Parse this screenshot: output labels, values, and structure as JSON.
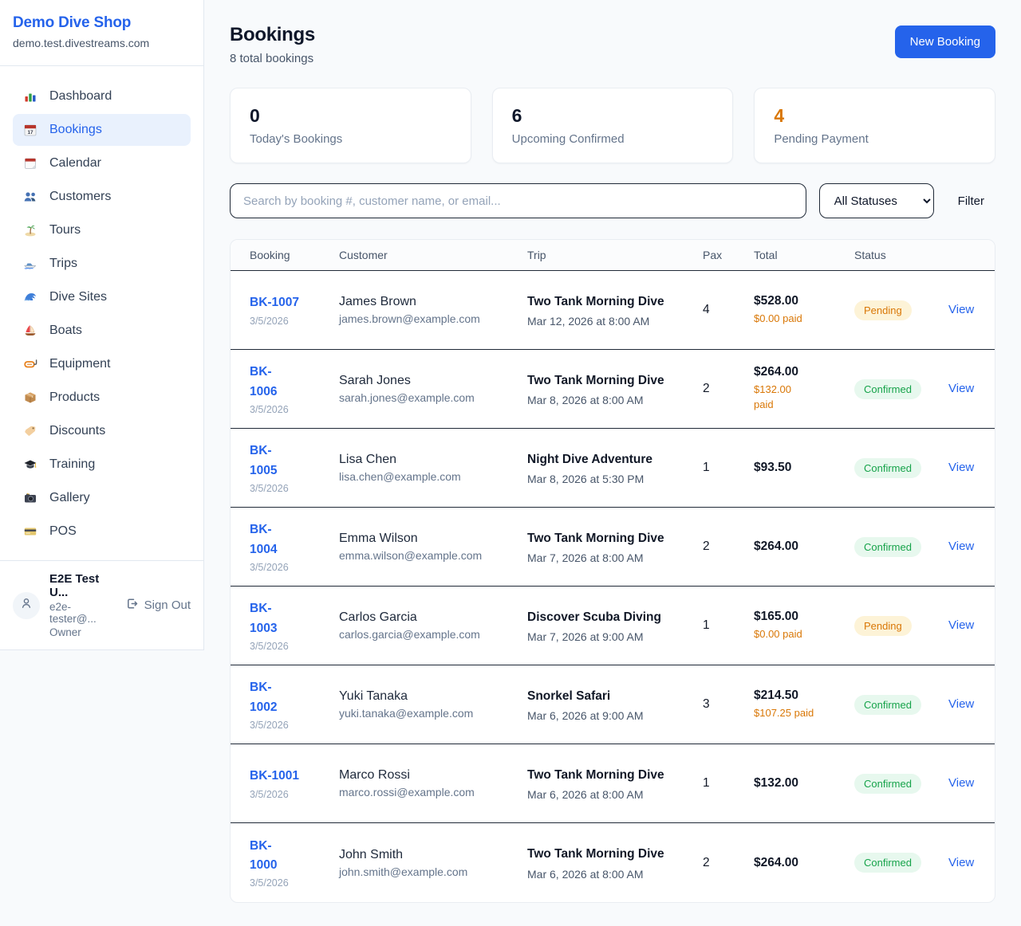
{
  "brand": {
    "name": "Demo Dive Shop",
    "domain": "demo.test.divestreams.com"
  },
  "sidebar": {
    "items": [
      {
        "icon": "bar-chart-icon",
        "label": "Dashboard",
        "active": false
      },
      {
        "icon": "calendar-date-icon",
        "label": "Bookings",
        "active": true
      },
      {
        "icon": "calendar-pad-icon",
        "label": "Calendar",
        "active": false
      },
      {
        "icon": "people-icon",
        "label": "Customers",
        "active": false
      },
      {
        "icon": "island-icon",
        "label": "Tours",
        "active": false
      },
      {
        "icon": "speedboat-icon",
        "label": "Trips",
        "active": false
      },
      {
        "icon": "wave-icon",
        "label": "Dive Sites",
        "active": false
      },
      {
        "icon": "sailboat-icon",
        "label": "Boats",
        "active": false
      },
      {
        "icon": "diving-mask-icon",
        "label": "Equipment",
        "active": false
      },
      {
        "icon": "package-icon",
        "label": "Products",
        "active": false
      },
      {
        "icon": "tag-icon",
        "label": "Discounts",
        "active": false
      },
      {
        "icon": "grad-cap-icon",
        "label": "Training",
        "active": false
      },
      {
        "icon": "camera-icon",
        "label": "Gallery",
        "active": false
      },
      {
        "icon": "credit-card-icon",
        "label": "POS",
        "active": false
      }
    ]
  },
  "user": {
    "name": "E2E Test U...",
    "email": "e2e-tester@...",
    "role": "Owner",
    "sign_out_label": "Sign Out"
  },
  "header": {
    "title": "Bookings",
    "subtitle": "8 total bookings",
    "new_booking_label": "New Booking"
  },
  "stats": [
    {
      "value": "0",
      "label": "Today's Bookings",
      "value_color": "#0f172a"
    },
    {
      "value": "6",
      "label": "Upcoming Confirmed",
      "value_color": "#0f172a"
    },
    {
      "value": "4",
      "label": "Pending Payment",
      "value_color": "#d97706"
    }
  ],
  "filters": {
    "search_placeholder": "Search by booking #, customer name, or email...",
    "status_selected": "All Statuses",
    "filter_label": "Filter"
  },
  "table": {
    "columns": [
      "Booking",
      "Customer",
      "Trip",
      "Pax",
      "Total",
      "Status"
    ],
    "rows": [
      {
        "id": "BK-1007",
        "id_wrap": false,
        "date": "3/5/2026",
        "customer": "James Brown",
        "email": "james.brown@example.com",
        "trip": "Two Tank Morning Dive",
        "trip_when": "Mar 12, 2026 at 8:00 AM",
        "pax": "4",
        "total": "$528.00",
        "paid": "$0.00 paid",
        "paid_wrap": false,
        "status": "Pending",
        "action": "View"
      },
      {
        "id": "BK-1006",
        "id_wrap": true,
        "date": "3/5/2026",
        "customer": "Sarah Jones",
        "email": "sarah.jones@example.com",
        "trip": "Two Tank Morning Dive",
        "trip_when": "Mar 8, 2026 at 8:00 AM",
        "pax": "2",
        "total": "$264.00",
        "paid": "$132.00 paid",
        "paid_wrap": true,
        "status": "Confirmed",
        "action": "View"
      },
      {
        "id": "BK-1005",
        "id_wrap": true,
        "date": "3/5/2026",
        "customer": "Lisa Chen",
        "email": "lisa.chen@example.com",
        "trip": "Night Dive Adventure",
        "trip_when": "Mar 8, 2026 at 5:30 PM",
        "pax": "1",
        "total": "$93.50",
        "paid": "",
        "paid_wrap": false,
        "status": "Confirmed",
        "action": "View"
      },
      {
        "id": "BK-1004",
        "id_wrap": true,
        "date": "3/5/2026",
        "customer": "Emma Wilson",
        "email": "emma.wilson@example.com",
        "trip": "Two Tank Morning Dive",
        "trip_when": "Mar 7, 2026 at 8:00 AM",
        "pax": "2",
        "total": "$264.00",
        "paid": "",
        "paid_wrap": false,
        "status": "Confirmed",
        "action": "View"
      },
      {
        "id": "BK-1003",
        "id_wrap": true,
        "date": "3/5/2026",
        "customer": "Carlos Garcia",
        "email": "carlos.garcia@example.com",
        "trip": "Discover Scuba Diving",
        "trip_when": "Mar 7, 2026 at 9:00 AM",
        "pax": "1",
        "total": "$165.00",
        "paid": "$0.00 paid",
        "paid_wrap": false,
        "status": "Pending",
        "action": "View"
      },
      {
        "id": "BK-1002",
        "id_wrap": true,
        "date": "3/5/2026",
        "customer": "Yuki Tanaka",
        "email": "yuki.tanaka@example.com",
        "trip": "Snorkel Safari",
        "trip_when": "Mar 6, 2026 at 9:00 AM",
        "pax": "3",
        "total": "$214.50",
        "paid": "$107.25 paid",
        "paid_wrap": false,
        "status": "Confirmed",
        "action": "View"
      },
      {
        "id": "BK-1001",
        "id_wrap": false,
        "date": "3/5/2026",
        "customer": "Marco Rossi",
        "email": "marco.rossi@example.com",
        "trip": "Two Tank Morning Dive",
        "trip_when": "Mar 6, 2026 at 8:00 AM",
        "pax": "1",
        "total": "$132.00",
        "paid": "",
        "paid_wrap": false,
        "status": "Confirmed",
        "action": "View"
      },
      {
        "id": "BK-1000",
        "id_wrap": true,
        "date": "3/5/2026",
        "customer": "John Smith",
        "email": "john.smith@example.com",
        "trip": "Two Tank Morning Dive",
        "trip_when": "Mar 6, 2026 at 8:00 AM",
        "pax": "2",
        "total": "$264.00",
        "paid": "",
        "paid_wrap": false,
        "status": "Confirmed",
        "action": "View"
      }
    ]
  },
  "colors": {
    "accent": "#2563eb",
    "paid_text": "#d97706",
    "status": {
      "Pending": {
        "bg": "#fdf3d7",
        "text": "#d97706"
      },
      "Confirmed": {
        "bg": "#e7f8ee",
        "text": "#16a34a"
      }
    }
  }
}
